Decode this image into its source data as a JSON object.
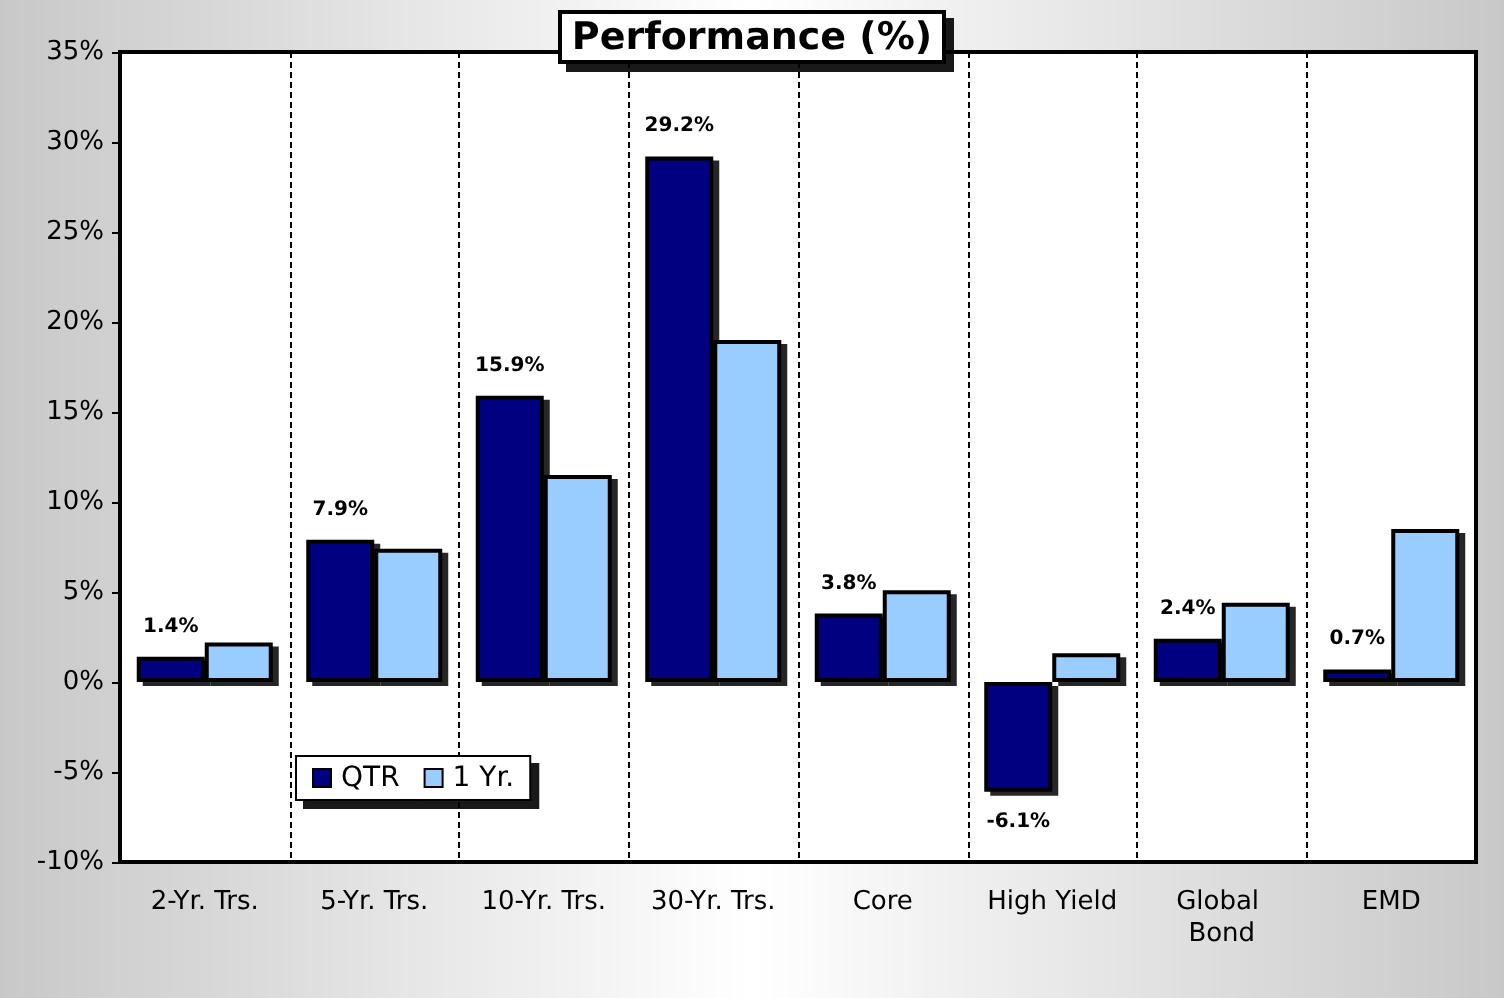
{
  "chart_data": {
    "type": "bar",
    "title": "Performance (%)",
    "categories": [
      "2-Yr. Trs.",
      "5-Yr. Trs.",
      "10-Yr. Trs.",
      "30-Yr. Trs.",
      "Core",
      "High Yield",
      "Global Bond",
      "EMD"
    ],
    "series": [
      {
        "name": "QTR",
        "color": "#000080",
        "values": [
          1.4,
          7.9,
          15.9,
          29.2,
          3.8,
          -6.1,
          2.4,
          0.7
        ],
        "value_labels": [
          "1.4%",
          "7.9%",
          "15.9%",
          "29.2%",
          "3.8%",
          "-6.1%",
          "2.4%",
          "0.7%"
        ]
      },
      {
        "name": "1 Yr.",
        "color": "#99ccff",
        "values": [
          2.2,
          7.4,
          11.5,
          19.0,
          5.1,
          1.6,
          4.4,
          8.5
        ]
      }
    ],
    "ylim": [
      -10,
      35
    ],
    "yticks": [
      {
        "value": -10,
        "label": "-10%"
      },
      {
        "value": -5,
        "label": "-5%"
      },
      {
        "value": 0,
        "label": "0%"
      },
      {
        "value": 5,
        "label": "5%"
      },
      {
        "value": 10,
        "label": "10%"
      },
      {
        "value": 15,
        "label": "15%"
      },
      {
        "value": 20,
        "label": "20%"
      },
      {
        "value": 25,
        "label": "25%"
      },
      {
        "value": 30,
        "label": "30%"
      },
      {
        "value": 35,
        "label": "35%"
      }
    ],
    "grid": "x",
    "legend": "bottom left"
  }
}
